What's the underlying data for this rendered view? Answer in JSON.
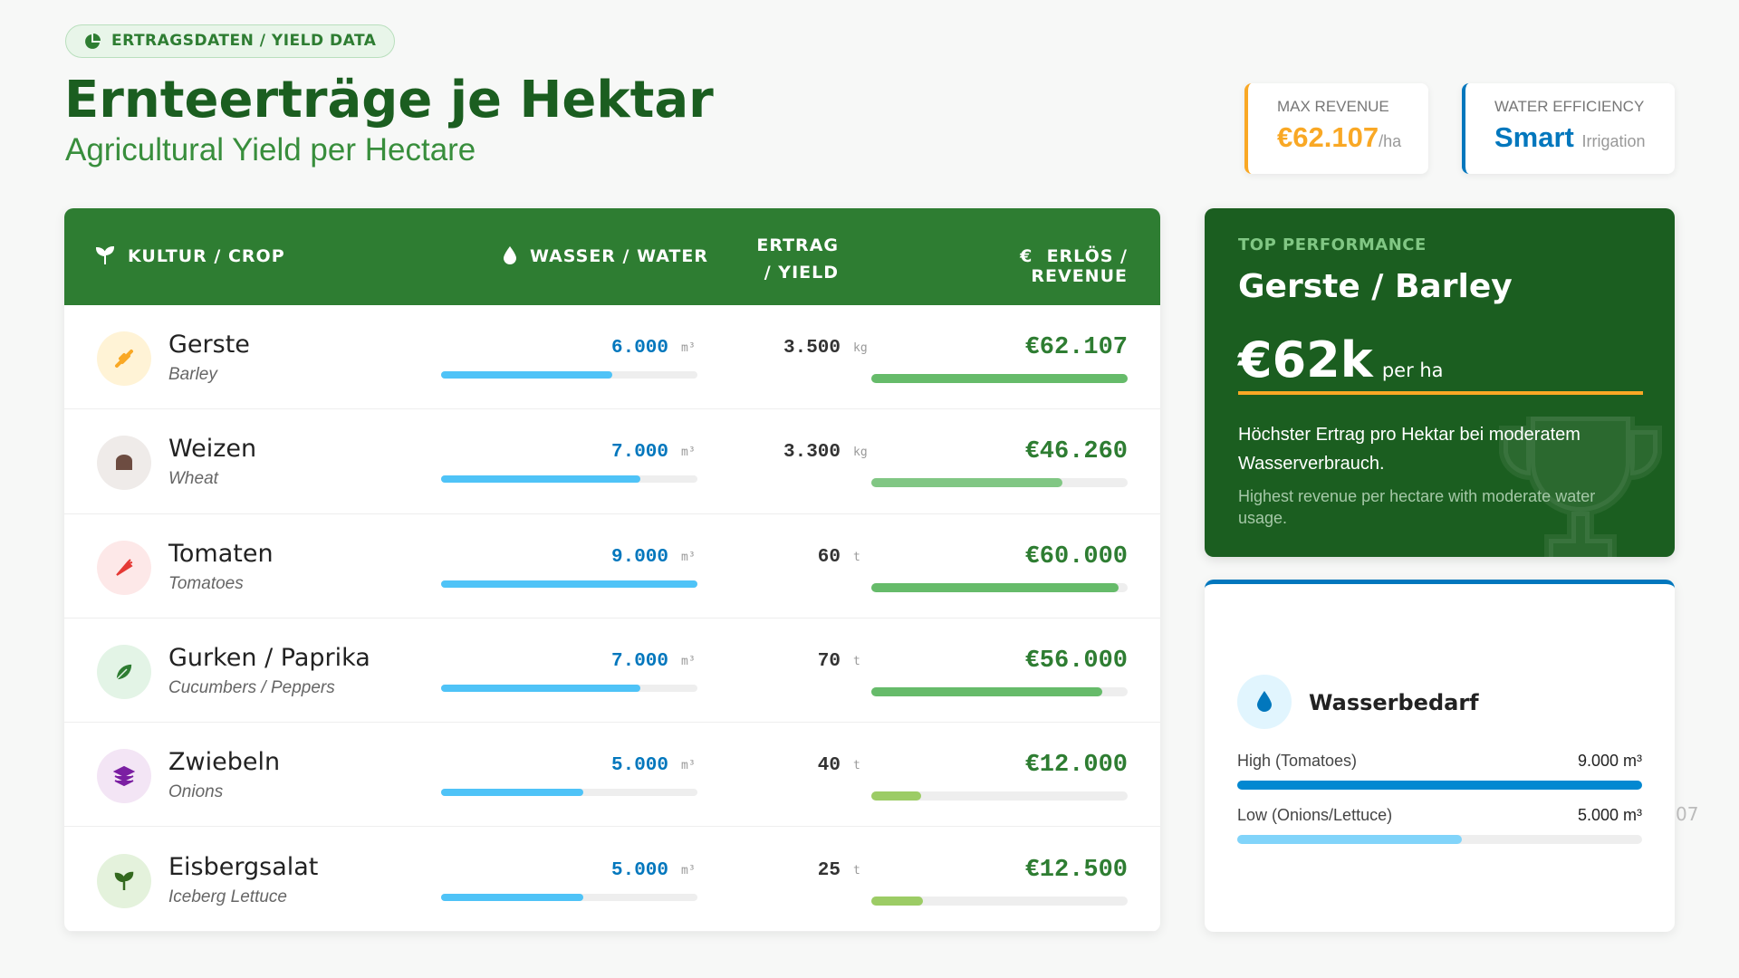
{
  "badge": "ERTRAGSDATEN / YIELD DATA",
  "title": "Ernteerträge je Hektar",
  "subtitle": "Agricultural Yield per Hectare",
  "kpis": [
    {
      "label": "MAX REVENUE",
      "value": "€62.107",
      "unit": "/ha"
    },
    {
      "label": "WATER EFFICIENCY",
      "value": "Smart",
      "unit": "Irrigation"
    }
  ],
  "table": {
    "headers": [
      "KULTUR / CROP",
      "WASSER / WATER",
      "ERTRAG / YIELD",
      "ERLÖS / REVENUE"
    ],
    "water_color": "#4fc3f7",
    "rows": [
      {
        "name": "Gerste",
        "name_en": "Barley",
        "water": {
          "value": 6000,
          "label": "6.000"
        },
        "water_unit": "m³",
        "yield": "3.500",
        "yield_unit": "kg",
        "revenue": {
          "value": 62107,
          "label": "€62.107"
        },
        "bar_color": "#66bb6a"
      },
      {
        "name": "Weizen",
        "name_en": "Wheat",
        "water": {
          "value": 7000,
          "label": "7.000"
        },
        "water_unit": "m³",
        "yield": "3.300",
        "yield_unit": "kg",
        "revenue": {
          "value": 46260,
          "label": "€46.260"
        },
        "bar_color": "#81c784"
      },
      {
        "name": "Tomaten",
        "name_en": "Tomatoes",
        "water": {
          "value": 9000,
          "label": "9.000"
        },
        "water_unit": "m³",
        "yield": "60",
        "yield_unit": "t",
        "revenue": {
          "value": 60000,
          "label": "€60.000"
        },
        "bar_color": "#66bb6a"
      },
      {
        "name": "Gurken / Paprika",
        "name_en": "Cucumbers / Peppers",
        "water": {
          "value": 7000,
          "label": "7.000"
        },
        "water_unit": "m³",
        "yield": "70",
        "yield_unit": "t",
        "revenue": {
          "value": 56000,
          "label": "€56.000"
        },
        "bar_color": "#66bb6a"
      },
      {
        "name": "Zwiebeln",
        "name_en": "Onions",
        "water": {
          "value": 5000,
          "label": "5.000"
        },
        "water_unit": "m³",
        "yield": "40",
        "yield_unit": "t",
        "revenue": {
          "value": 12000,
          "label": "€12.000"
        },
        "bar_color": "#9ccc65"
      },
      {
        "name": "Eisbergsalat",
        "name_en": "Iceberg Lettuce",
        "water": {
          "value": 5000,
          "label": "5.000"
        },
        "water_unit": "m³",
        "yield": "25",
        "yield_unit": "t",
        "revenue": {
          "value": 12500,
          "label": "€12.500"
        },
        "bar_color": "#9ccc65"
      }
    ]
  },
  "top": {
    "label": "TOP PERFORMANCE",
    "crop": "Gerste / Barley",
    "value": "€62k",
    "unit": "per ha",
    "text_de": "Höchster Ertrag pro Hektar bei moderatem Wasserverbrauch.",
    "text_en": "Highest revenue per hectare with moderate water usage."
  },
  "water_panel": {
    "title": "Wasserbedarf",
    "items": [
      {
        "label": "High (Tomatoes)",
        "value": {
          "value": 9000,
          "label": "9.000 m³"
        },
        "color": "#0288d1"
      },
      {
        "label": "Low (Onions/Lettuce)",
        "value": {
          "value": 5000,
          "label": "5.000 m³"
        },
        "color": "#81d4fa"
      }
    ]
  },
  "page_number": "07"
}
